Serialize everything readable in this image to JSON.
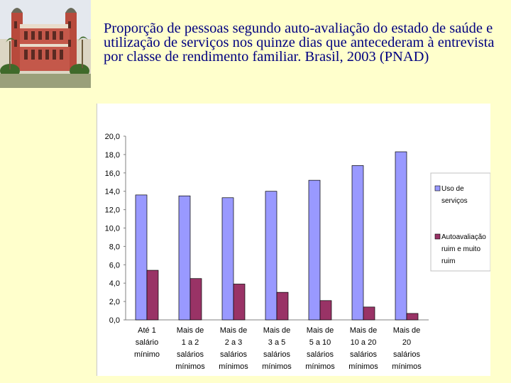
{
  "title": "Proporção de pessoas segundo auto-avaliação do estado de saúde e utilização de serviços nos quinze dias que antecederam à entrevista por classe de rendimento familiar. Brasil, 2003 (PNAD)",
  "logo_icon": "building-photo-icon",
  "colors": {
    "background": "#ffffcc",
    "title": "#000080",
    "series_uso": "#9999ff",
    "series_auto": "#993366"
  },
  "chart_data": {
    "type": "bar",
    "title": "",
    "xlabel": "",
    "ylabel": "",
    "ylim": [
      0,
      20
    ],
    "yticks": [
      "0,0",
      "2,0",
      "4,0",
      "6,0",
      "8,0",
      "10,0",
      "12,0",
      "14,0",
      "16,0",
      "18,0",
      "20,0"
    ],
    "grid": false,
    "legend_position": "right",
    "categories": [
      [
        "Até 1",
        "salário",
        "mínimo"
      ],
      [
        "Mais de",
        "1 a 2",
        "salários",
        "mínimos"
      ],
      [
        "Mais de",
        "2 a 3",
        "salários",
        "mínimos"
      ],
      [
        "Mais de",
        "3 a 5",
        "salários",
        "mínimos"
      ],
      [
        "Mais de",
        "5 a 10",
        "salários",
        "mínimos"
      ],
      [
        "Mais de",
        "10 a 20",
        "salários",
        "mínimos"
      ],
      [
        "Mais de",
        "20",
        "salários",
        "mínimos"
      ]
    ],
    "series": [
      {
        "name": "Uso de serviços",
        "legend_lines": [
          "Uso de",
          "serviços"
        ],
        "color": "#9999ff",
        "values": [
          13.6,
          13.5,
          13.3,
          14.0,
          15.2,
          16.8,
          18.3
        ]
      },
      {
        "name": "Autoavaliação ruim e muito ruim",
        "legend_lines": [
          "Autoavaliação",
          "ruim e muito",
          "ruim"
        ],
        "color": "#993366",
        "values": [
          5.4,
          4.5,
          3.9,
          3.0,
          2.1,
          1.4,
          0.7
        ]
      }
    ]
  }
}
